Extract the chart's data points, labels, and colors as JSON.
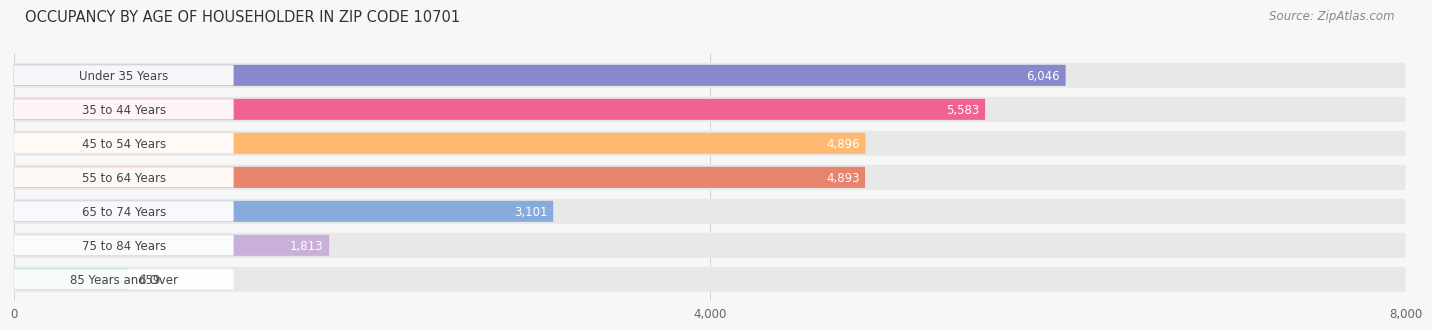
{
  "title": "OCCUPANCY BY AGE OF HOUSEHOLDER IN ZIP CODE 10701",
  "source": "Source: ZipAtlas.com",
  "categories": [
    "Under 35 Years",
    "35 to 44 Years",
    "45 to 54 Years",
    "55 to 64 Years",
    "65 to 74 Years",
    "75 to 84 Years",
    "85 Years and Over"
  ],
  "values": [
    6046,
    5583,
    4896,
    4893,
    3101,
    1813,
    659
  ],
  "bar_colors": [
    "#8888cc",
    "#f06292",
    "#ffb870",
    "#e8836e",
    "#88aadd",
    "#c9b0d8",
    "#7ecece"
  ],
  "bar_bg_color": "#e8e8e8",
  "background_color": "#f7f7f7",
  "xlim": [
    0,
    8000
  ],
  "xticks": [
    0,
    4000,
    8000
  ],
  "title_fontsize": 10.5,
  "source_fontsize": 8.5,
  "label_fontsize": 8.5,
  "value_fontsize": 8.5
}
